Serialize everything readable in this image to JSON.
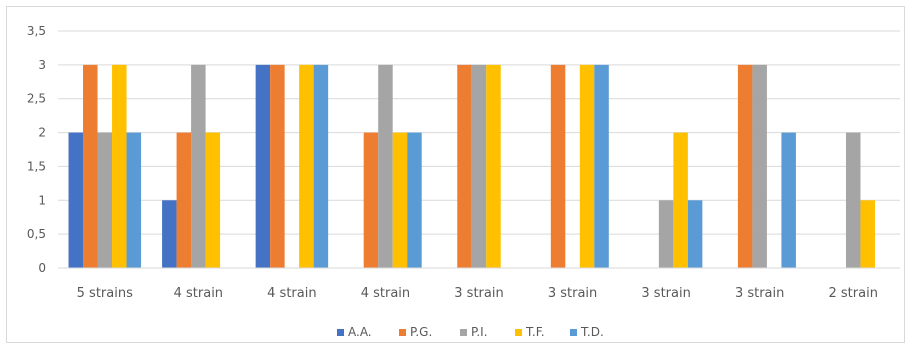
{
  "chart_data": {
    "type": "bar",
    "categories": [
      "5 strains",
      "4 strain",
      "4 strain",
      "4 strain",
      "3 strain",
      "3 strain",
      "3 strain",
      "3 strain",
      "2 strain"
    ],
    "series": [
      {
        "name": "A.A.",
        "color": "#4472C4",
        "values": [
          2,
          1,
          3,
          0,
          0,
          0,
          0,
          0,
          0
        ]
      },
      {
        "name": "P.G.",
        "color": "#ED7D31",
        "values": [
          3,
          2,
          3,
          2,
          3,
          3,
          0,
          3,
          0
        ]
      },
      {
        "name": "P.I.",
        "color": "#A5A5A5",
        "values": [
          2,
          3,
          0,
          3,
          3,
          0,
          1,
          3,
          2
        ]
      },
      {
        "name": "T.F.",
        "color": "#FFC000",
        "values": [
          3,
          2,
          3,
          2,
          3,
          3,
          2,
          0,
          1
        ]
      },
      {
        "name": "T.D.",
        "color": "#5B9BD5",
        "values": [
          2,
          0,
          3,
          2,
          0,
          3,
          1,
          2,
          0
        ]
      }
    ],
    "ylim": [
      0,
      3.5
    ],
    "yticks": [
      "0",
      "0,5",
      "1",
      "1,5",
      "2",
      "2,5",
      "3",
      "3,5"
    ],
    "grid": true,
    "legend_position": "bottom"
  }
}
